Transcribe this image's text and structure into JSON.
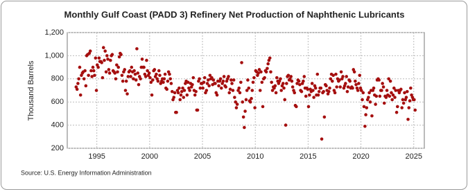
{
  "chart_data": {
    "type": "scatter",
    "title": "Monthly Gulf Coast (PADD 3) Refinery Net Production of Naphthenic Lubricants",
    "y_label": "Thousand Barrels",
    "source": "Source: U.S. Energy Information Administration",
    "color": "#a50f0f",
    "grid": true,
    "xlim": [
      1992.2,
      2026.0
    ],
    "xticks": [
      1995,
      2000,
      2005,
      2010,
      2015,
      2020,
      2025
    ],
    "ylim": [
      200,
      1200
    ],
    "yticks": [
      200,
      400,
      600,
      800,
      {
        "value": 1000,
        "label": "1,000"
      },
      {
        "value": 1200,
        "label": "1,200"
      }
    ],
    "x": [
      1993.04,
      1993.13,
      1993.21,
      1993.29,
      1993.38,
      1993.46,
      1993.54,
      1993.63,
      1993.71,
      1993.79,
      1993.88,
      1993.96,
      1994.04,
      1994.13,
      1994.21,
      1994.29,
      1994.38,
      1994.46,
      1994.54,
      1994.63,
      1994.71,
      1994.79,
      1994.88,
      1994.96,
      1995.04,
      1995.13,
      1995.21,
      1995.29,
      1995.38,
      1995.46,
      1995.54,
      1995.63,
      1995.71,
      1995.79,
      1995.88,
      1995.96,
      1996.04,
      1996.13,
      1996.21,
      1996.29,
      1996.38,
      1996.46,
      1996.54,
      1996.63,
      1996.71,
      1996.79,
      1996.88,
      1996.96,
      1997.04,
      1997.13,
      1997.21,
      1997.29,
      1997.38,
      1997.46,
      1997.54,
      1997.63,
      1997.71,
      1997.79,
      1997.88,
      1997.96,
      1998.04,
      1998.13,
      1998.21,
      1998.29,
      1998.38,
      1998.46,
      1998.54,
      1998.63,
      1998.71,
      1998.79,
      1998.88,
      1998.96,
      1999.04,
      1999.13,
      1999.21,
      1999.29,
      1999.38,
      1999.46,
      1999.54,
      1999.63,
      1999.71,
      1999.79,
      1999.88,
      1999.96,
      2000.04,
      2000.13,
      2000.21,
      2000.29,
      2000.38,
      2000.46,
      2000.54,
      2000.63,
      2000.71,
      2000.79,
      2000.88,
      2000.96,
      2001.04,
      2001.13,
      2001.21,
      2001.29,
      2001.38,
      2001.46,
      2001.54,
      2001.63,
      2001.71,
      2001.79,
      2001.88,
      2001.96,
      2002.04,
      2002.13,
      2002.21,
      2002.29,
      2002.38,
      2002.46,
      2002.54,
      2002.63,
      2002.71,
      2002.79,
      2002.88,
      2002.96,
      2003.04,
      2003.13,
      2003.21,
      2003.29,
      2003.38,
      2003.46,
      2003.54,
      2003.63,
      2003.71,
      2003.79,
      2003.88,
      2003.96,
      2004.04,
      2004.13,
      2004.21,
      2004.29,
      2004.38,
      2004.46,
      2004.54,
      2004.63,
      2004.71,
      2004.79,
      2004.88,
      2004.96,
      2005.04,
      2005.13,
      2005.21,
      2005.29,
      2005.38,
      2005.46,
      2005.54,
      2005.63,
      2005.71,
      2005.79,
      2005.88,
      2005.96,
      2006.04,
      2006.13,
      2006.21,
      2006.29,
      2006.38,
      2006.46,
      2006.54,
      2006.63,
      2006.71,
      2006.79,
      2006.88,
      2006.96,
      2007.04,
      2007.13,
      2007.21,
      2007.29,
      2007.38,
      2007.46,
      2007.54,
      2007.63,
      2007.71,
      2007.79,
      2007.88,
      2007.96,
      2008.04,
      2008.13,
      2008.21,
      2008.29,
      2008.38,
      2008.46,
      2008.54,
      2008.63,
      2008.71,
      2008.79,
      2008.88,
      2008.96,
      2009.04,
      2009.13,
      2009.21,
      2009.29,
      2009.38,
      2009.46,
      2009.54,
      2009.63,
      2009.71,
      2009.79,
      2009.88,
      2009.96,
      2010.04,
      2010.13,
      2010.21,
      2010.29,
      2010.38,
      2010.46,
      2010.54,
      2010.63,
      2010.71,
      2010.79,
      2010.88,
      2010.96,
      2011.04,
      2011.13,
      2011.21,
      2011.29,
      2011.38,
      2011.46,
      2011.54,
      2011.63,
      2011.71,
      2011.79,
      2011.88,
      2011.96,
      2012.04,
      2012.13,
      2012.21,
      2012.29,
      2012.38,
      2012.46,
      2012.54,
      2012.63,
      2012.71,
      2012.79,
      2012.88,
      2012.96,
      2013.04,
      2013.13,
      2013.21,
      2013.29,
      2013.38,
      2013.46,
      2013.54,
      2013.63,
      2013.71,
      2013.79,
      2013.88,
      2013.96,
      2014.04,
      2014.13,
      2014.21,
      2014.29,
      2014.38,
      2014.46,
      2014.54,
      2014.63,
      2014.71,
      2014.79,
      2014.88,
      2014.96,
      2015.04,
      2015.13,
      2015.21,
      2015.29,
      2015.38,
      2015.46,
      2015.54,
      2015.63,
      2015.71,
      2015.79,
      2015.88,
      2015.96,
      2016.04,
      2016.13,
      2016.21,
      2016.29,
      2016.38,
      2016.46,
      2016.54,
      2016.63,
      2016.71,
      2016.79,
      2016.88,
      2016.96,
      2017.04,
      2017.13,
      2017.21,
      2017.29,
      2017.38,
      2017.46,
      2017.54,
      2017.63,
      2017.71,
      2017.79,
      2017.88,
      2017.96,
      2018.04,
      2018.13,
      2018.21,
      2018.29,
      2018.38,
      2018.46,
      2018.54,
      2018.63,
      2018.71,
      2018.79,
      2018.88,
      2018.96,
      2019.04,
      2019.13,
      2019.21,
      2019.29,
      2019.38,
      2019.46,
      2019.54,
      2019.63,
      2019.71,
      2019.79,
      2019.88,
      2019.96,
      2020.04,
      2020.13,
      2020.21,
      2020.29,
      2020.38,
      2020.46,
      2020.54,
      2020.63,
      2020.71,
      2020.79,
      2020.88,
      2020.96,
      2021.04,
      2021.13,
      2021.21,
      2021.29,
      2021.38,
      2021.46,
      2021.54,
      2021.63,
      2021.71,
      2021.79,
      2021.88,
      2021.96,
      2022.04,
      2022.13,
      2022.21,
      2022.29,
      2022.38,
      2022.46,
      2022.54,
      2022.63,
      2022.71,
      2022.79,
      2022.88,
      2022.96,
      2023.04,
      2023.13,
      2023.21,
      2023.29,
      2023.38,
      2023.46,
      2023.54,
      2023.63,
      2023.71,
      2023.79,
      2023.88,
      2023.96,
      2024.04,
      2024.13,
      2024.21,
      2024.29,
      2024.38,
      2024.46,
      2024.54,
      2024.63,
      2024.71,
      2024.79,
      2024.88,
      2024.96,
      2025.04,
      2025.13
    ],
    "values": [
      730,
      710,
      760,
      800,
      900,
      660,
      830,
      850,
      860,
      800,
      870,
      740,
      1000,
      1010,
      830,
      1020,
      1040,
      870,
      820,
      900,
      870,
      830,
      980,
      700,
      920,
      900,
      980,
      950,
      950,
      940,
      810,
      1070,
      960,
      1040,
      860,
      1000,
      970,
      880,
      850,
      960,
      1000,
      1010,
      870,
      860,
      850,
      800,
      920,
      860,
      900,
      990,
      1020,
      1010,
      830,
      780,
      860,
      880,
      700,
      780,
      670,
      820,
      860,
      870,
      820,
      900,
      860,
      800,
      870,
      840,
      790,
      1060,
      850,
      750,
      820,
      800,
      900,
      970,
      900,
      900,
      840,
      820,
      960,
      870,
      830,
      850,
      810,
      770,
      660,
      790,
      870,
      880,
      820,
      840,
      800,
      780,
      870,
      830,
      760,
      780,
      800,
      770,
      800,
      840,
      720,
      710,
      780,
      860,
      840,
      800,
      760,
      690,
      620,
      640,
      680,
      510,
      510,
      700,
      680,
      720,
      620,
      660,
      690,
      720,
      640,
      700,
      760,
      780,
      660,
      770,
      720,
      700,
      760,
      730,
      750,
      810,
      700,
      660,
      690,
      530,
      530,
      780,
      800,
      720,
      760,
      760,
      720,
      770,
      810,
      680,
      700,
      760,
      790,
      740,
      830,
      800,
      810,
      750,
      790,
      760,
      760,
      680,
      660,
      780,
      740,
      780,
      800,
      720,
      760,
      780,
      820,
      740,
      730,
      780,
      800,
      820,
      680,
      710,
      790,
      760,
      700,
      790,
      640,
      600,
      550,
      580,
      700,
      720,
      680,
      770,
      940,
      600,
      470,
      380,
      520,
      620,
      700,
      790,
      720,
      610,
      600,
      630,
      700,
      770,
      810,
      550,
      870,
      860,
      830,
      850,
      880,
      700,
      860,
      770,
      560,
      800,
      810,
      870,
      860,
      890,
      930,
      960,
      980,
      860,
      770,
      700,
      730,
      720,
      740,
      680,
      810,
      780,
      760,
      780,
      800,
      700,
      740,
      760,
      720,
      620,
      400,
      760,
      820,
      830,
      790,
      800,
      820,
      780,
      730,
      700,
      680,
      570,
      560,
      760,
      790,
      780,
      750,
      700,
      690,
      760,
      780,
      820,
      720,
      650,
      720,
      710,
      560,
      660,
      710,
      690,
      760,
      700,
      640,
      740,
      720,
      660,
      840,
      660,
      690,
      720,
      720,
      280,
      680,
      690,
      470,
      750,
      740,
      700,
      670,
      690,
      720,
      800,
      840,
      780,
      830,
      700,
      680,
      840,
      730,
      800,
      780,
      790,
      730,
      860,
      800,
      820,
      720,
      740,
      760,
      820,
      690,
      730,
      790,
      780,
      720,
      730,
      720,
      880,
      860,
      780,
      750,
      720,
      700,
      760,
      830,
      720,
      700,
      620,
      680,
      560,
      390,
      490,
      550,
      620,
      640,
      680,
      600,
      700,
      480,
      700,
      720,
      660,
      580,
      650,
      790,
      800,
      790,
      650,
      700,
      700,
      760,
      730,
      590,
      650,
      640,
      700,
      660,
      800,
      650,
      780,
      680,
      620,
      660,
      720,
      640,
      700,
      510,
      560,
      700,
      680,
      700,
      710,
      550,
      620,
      590,
      680,
      620,
      640,
      690,
      450,
      550,
      610,
      720,
      660,
      640,
      620,
      620,
      530
    ]
  }
}
